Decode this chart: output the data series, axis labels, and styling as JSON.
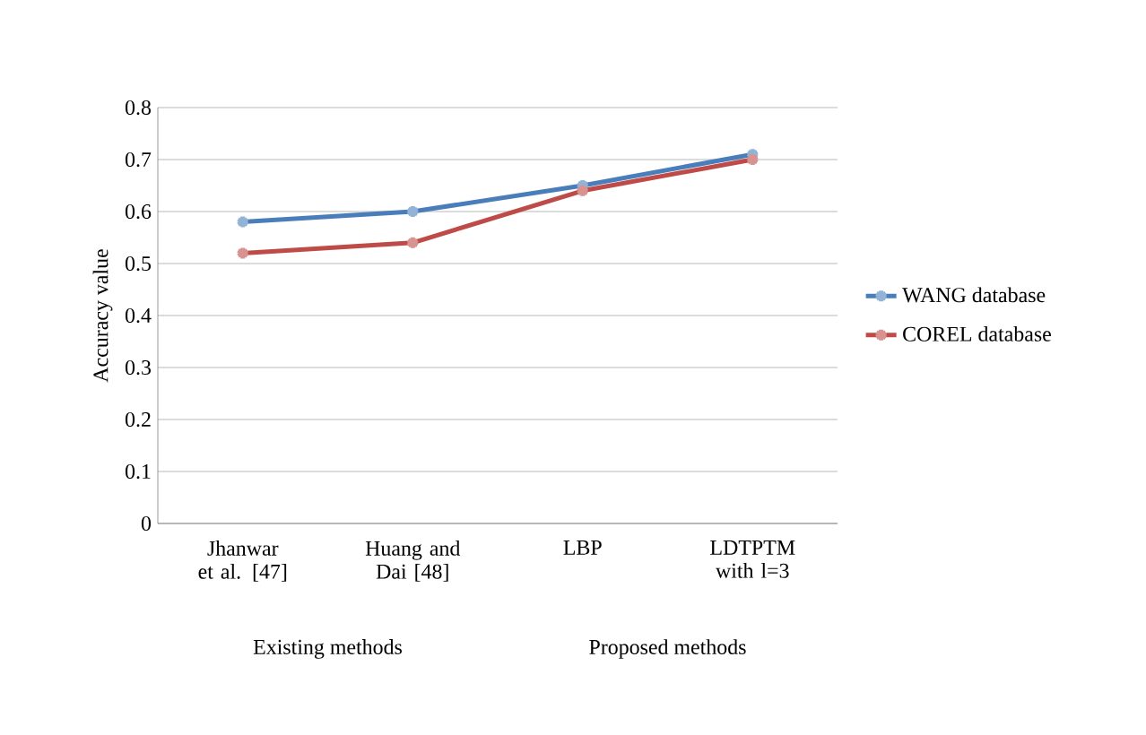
{
  "chart_data": {
    "type": "line",
    "ylabel": "Accuracy value",
    "categories": [
      "Jhanwar et al. [47]",
      "Huang and Dai [48]",
      "LBP",
      "LDTPTM with l=3"
    ],
    "series": [
      {
        "name": "WANG database",
        "color": "#4a7ebb",
        "values": [
          0.58,
          0.6,
          0.65,
          0.71
        ]
      },
      {
        "name": "COREL database",
        "color": "#be4b48",
        "values": [
          0.52,
          0.54,
          0.64,
          0.7
        ]
      }
    ],
    "ylim": [
      0,
      0.8
    ],
    "yticks": [
      0,
      0.1,
      0.2,
      0.3,
      0.4,
      0.5,
      0.6,
      0.7,
      0.8
    ],
    "grid": "y",
    "legend": "right",
    "marker": "cross",
    "line_style": "solid",
    "annotations": [
      "Existing methods",
      "Proposed methods"
    ]
  }
}
